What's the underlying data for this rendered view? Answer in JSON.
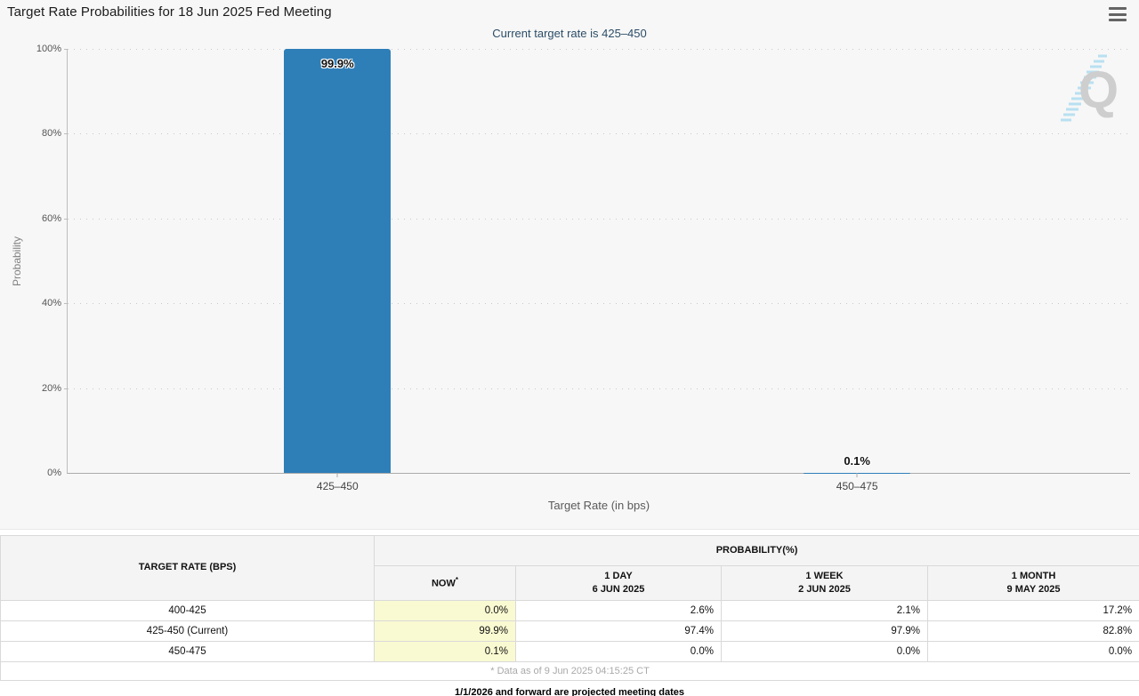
{
  "header": {
    "title": "Target Rate Probabilities for 18 Jun 2025 Fed Meeting",
    "subtitle": "Current target rate is 425–450"
  },
  "colors": {
    "bar-color": "#2E7EB8",
    "subtitle-color": "#2C4D68",
    "chart-bg": "#F7F7F7",
    "now-cell-bg": "#FAFAD2"
  },
  "chart_data": {
    "type": "bar",
    "title": "Target Rate Probabilities for 18 Jun 2025 Fed Meeting",
    "subtitle": "Current target rate is 425–450",
    "categories": [
      "425–450",
      "450–475"
    ],
    "values": [
      99.9,
      0.1
    ],
    "value_labels": [
      "99.9%",
      "0.1%"
    ],
    "xlabel": "Target Rate (in bps)",
    "ylabel": "Probability",
    "ylim": [
      0,
      100
    ],
    "y_ticks": [
      "100%",
      "80%",
      "60%",
      "40%",
      "20%",
      "0%"
    ],
    "grid": "horizontal dotted, legend none",
    "bar_color": "#2E7EB8"
  },
  "table": {
    "col1_header": "TARGET RATE (BPS)",
    "group_header": "PROBABILITY(%)",
    "columns": [
      {
        "label": "NOW",
        "sup": "*",
        "sub": ""
      },
      {
        "label": "1 DAY",
        "sub": "6 JUN 2025"
      },
      {
        "label": "1 WEEK",
        "sub": "2 JUN 2025"
      },
      {
        "label": "1 MONTH",
        "sub": "9 MAY 2025"
      }
    ],
    "rows": [
      {
        "rate": "400-425",
        "now": "0.0%",
        "d1": "2.6%",
        "w1": "2.1%",
        "m1": "17.2%"
      },
      {
        "rate": "425-450 (Current)",
        "now": "99.9%",
        "d1": "97.4%",
        "w1": "97.9%",
        "m1": "82.8%"
      },
      {
        "rate": "450-475",
        "now": "0.1%",
        "d1": "0.0%",
        "w1": "0.0%",
        "m1": "0.0%"
      }
    ],
    "footnote": "* Data as of 9 Jun 2025 04:15:25 CT",
    "note": "1/1/2026 and forward are projected meeting dates"
  }
}
